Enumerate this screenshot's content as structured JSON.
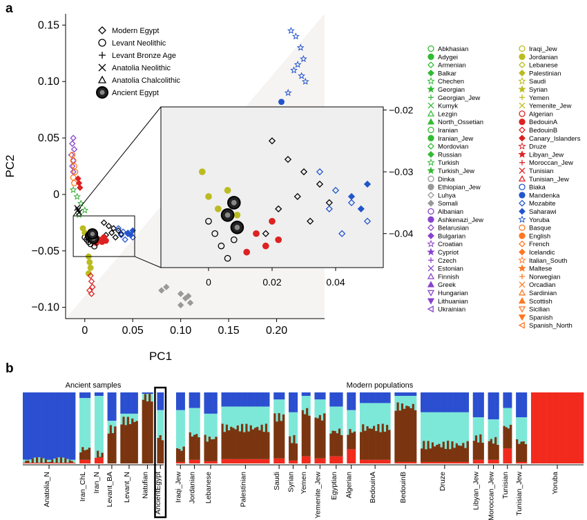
{
  "panel_a_label": "a",
  "panel_b_label": "b",
  "chart_data": [
    {
      "type": "scatter",
      "xlabel": "PC1",
      "ylabel": "PC2",
      "xlim": [
        -0.02,
        0.25
      ],
      "ylim": [
        -0.11,
        0.16
      ],
      "x_ticks": [
        "0",
        "0.05",
        "0.10",
        "0.15",
        "0.20"
      ],
      "x_tick_values": [
        0,
        0.05,
        0.1,
        0.15,
        0.2
      ],
      "y_ticks": [
        "0.15",
        "0.10",
        "0.05",
        "0",
        "−0.05",
        "−0.10"
      ],
      "y_tick_values": [
        0.15,
        0.1,
        0.05,
        0,
        -0.05,
        -0.1
      ],
      "ancient_legend": [
        {
          "label": "Modern Egypt",
          "marker": "diamond"
        },
        {
          "label": "Levant Neolithic",
          "marker": "circle"
        },
        {
          "label": "Levant Bronze Age",
          "marker": "plus"
        },
        {
          "label": "Anatolia Neolithic",
          "marker": "cross"
        },
        {
          "label": "Anatolia Chalcolithic",
          "marker": "triangle"
        },
        {
          "label": "Ancient Egypt",
          "marker": "bigdot"
        }
      ],
      "inset": {
        "xlim": [
          -0.015,
          0.055
        ],
        "ylim": [
          -0.0455,
          -0.0195
        ],
        "x_ticks": [
          "0",
          "0.02",
          "0.04"
        ],
        "x_tick_values": [
          0,
          0.02,
          0.04
        ],
        "y_ticks": [
          "−0.02",
          "−0.03",
          "−0.04"
        ],
        "y_tick_values": [
          -0.02,
          -0.03,
          -0.04
        ]
      },
      "clusters": [
        {
          "color": "#2255cc",
          "marker": "star",
          "x": [
            0.215,
            0.22,
            0.225,
            0.228,
            0.222,
            0.218,
            0.226,
            0.23,
            0.212
          ],
          "y": [
            0.145,
            0.14,
            0.13,
            0.12,
            0.115,
            0.11,
            0.105,
            0.1,
            0.09
          ]
        },
        {
          "color": "#2255cc",
          "marker": "dot",
          "x": [
            0.2,
            0.205,
            0.198
          ],
          "y": [
            0.075,
            0.082,
            0.07
          ]
        },
        {
          "color": "#000000",
          "marker": "diamond",
          "x": [
            0.02,
            0.025,
            0.03,
            0.035,
            0.028,
            0.022,
            0.032,
            0.038,
            0.018
          ],
          "y": [
            -0.025,
            -0.028,
            -0.03,
            -0.032,
            -0.034,
            -0.036,
            -0.038,
            -0.035,
            -0.04
          ]
        },
        {
          "color": "#2255cc",
          "marker": "diamond",
          "x": [
            0.035,
            0.04,
            0.045,
            0.05,
            0.042,
            0.038
          ],
          "y": [
            -0.03,
            -0.033,
            -0.035,
            -0.038,
            -0.04,
            -0.036
          ]
        },
        {
          "color": "#2255cc",
          "marker": "fdiamond",
          "x": [
            0.045,
            0.05,
            0.048
          ],
          "y": [
            -0.034,
            -0.032,
            -0.036
          ]
        },
        {
          "color": "#dd2222",
          "marker": "dot",
          "x": [
            0.015,
            0.018,
            0.02,
            0.022,
            0.012
          ],
          "y": [
            -0.04,
            -0.042,
            -0.038,
            -0.041,
            -0.043
          ]
        },
        {
          "color": "#000000",
          "marker": "circle",
          "x": [
            0.0,
            0.002,
            0.004,
            0.006,
            0.008,
            0.01
          ],
          "y": [
            -0.038,
            -0.04,
            -0.042,
            -0.044,
            -0.041,
            -0.046
          ]
        },
        {
          "color": "#bbbb22",
          "marker": "dot",
          "x": [
            -0.002,
            0.0,
            0.003,
            0.006,
            0.009
          ],
          "y": [
            -0.03,
            -0.034,
            -0.036,
            -0.033,
            -0.037
          ]
        },
        {
          "color": "#8844cc",
          "marker": "diamond",
          "x": [
            -0.012,
            -0.013,
            -0.011,
            -0.014,
            -0.012,
            -0.013,
            -0.012
          ],
          "y": [
            0.05,
            0.045,
            0.04,
            0.035,
            0.03,
            0.025,
            0.02
          ]
        },
        {
          "color": "#ff7722",
          "marker": "circle",
          "x": [
            -0.013,
            -0.012,
            -0.011,
            -0.01,
            -0.012,
            -0.011
          ],
          "y": [
            0.035,
            0.03,
            0.025,
            0.02,
            0.015,
            0.01
          ]
        },
        {
          "color": "#dd2222",
          "marker": "fdiamond",
          "x": [
            -0.007,
            -0.006,
            -0.005
          ],
          "y": [
            0.014,
            0.01,
            0.006
          ]
        },
        {
          "color": "#33aa33",
          "marker": "star",
          "x": [
            -0.012,
            -0.008,
            -0.004,
            0.0,
            -0.006
          ],
          "y": [
            0.004,
            -0.002,
            -0.008,
            -0.014,
            -0.018
          ]
        },
        {
          "color": "#000000",
          "marker": "cross",
          "x": [
            -0.008,
            -0.007,
            -0.006
          ],
          "y": [
            -0.012,
            -0.014,
            -0.016
          ]
        },
        {
          "color": "#bbbb22",
          "marker": "dot",
          "x": [
            0.004,
            0.005,
            0.006,
            0.004
          ],
          "y": [
            -0.055,
            -0.06,
            -0.065,
            -0.07
          ]
        },
        {
          "color": "#dd2222",
          "marker": "diamond",
          "x": [
            0.006,
            0.007,
            0.008,
            0.005,
            0.007
          ],
          "y": [
            -0.072,
            -0.077,
            -0.082,
            -0.085,
            -0.088
          ]
        },
        {
          "color": "#999999",
          "marker": "fdiamond",
          "x": [
            0.08,
            0.085,
            0.1,
            0.105,
            0.11,
            0.1,
            0.108
          ],
          "y": [
            -0.085,
            -0.082,
            -0.088,
            -0.092,
            -0.096,
            -0.098,
            -0.09
          ]
        }
      ],
      "ancient_egypt": {
        "x": [
          0.006,
          0.009,
          0.008
        ],
        "y": [
          -0.037,
          -0.039,
          -0.035
        ]
      }
    },
    {
      "type": "stacked_bar",
      "ancient_group_title": "Ancient samples",
      "modern_group_title": "Modern populations",
      "components": [
        {
          "color": "#2b4fd0"
        },
        {
          "color": "#7de8d8"
        },
        {
          "color": "#7a3510"
        },
        {
          "color": "#f22a1e"
        }
      ],
      "groups": [
        {
          "label": "Anatolia_N",
          "n": 24,
          "blue": 0.95,
          "cyan": 0.02,
          "brown": 0.02,
          "red": 0.01
        },
        {
          "label": "Iran_ChL",
          "n": 5,
          "blue": 0.08,
          "cyan": 0.72,
          "brown": 0.15,
          "red": 0.05
        },
        {
          "label": "Iran_N",
          "n": 4,
          "blue": 0.05,
          "cyan": 0.82,
          "brown": 0.05,
          "red": 0.08
        },
        {
          "label": "Levant_BA",
          "n": 4,
          "blue": 0.4,
          "cyan": 0.12,
          "brown": 0.48,
          "red": 0.0
        },
        {
          "label": "Levant_N",
          "n": 8,
          "blue": 0.3,
          "cyan": 0.1,
          "brown": 0.6,
          "red": 0.0
        },
        {
          "label": "Natufian",
          "n": 5,
          "blue": 0.02,
          "cyan": 0.05,
          "brown": 0.93,
          "red": 0.0
        },
        {
          "label": "AncientEgypt",
          "n": 3,
          "blue": 0.25,
          "cyan": 0.38,
          "brown": 0.37,
          "red": 0.0
        },
        {
          "label": "Iraqi_Jew",
          "n": 4,
          "blue": 0.25,
          "cyan": 0.55,
          "brown": 0.18,
          "red": 0.02
        },
        {
          "label": "Jordanian",
          "n": 5,
          "blue": 0.22,
          "cyan": 0.38,
          "brown": 0.35,
          "red": 0.05
        },
        {
          "label": "Lebanese",
          "n": 6,
          "blue": 0.3,
          "cyan": 0.35,
          "brown": 0.32,
          "red": 0.03
        },
        {
          "label": "Palestinian",
          "n": 22,
          "blue": 0.2,
          "cyan": 0.3,
          "brown": 0.44,
          "red": 0.06
        },
        {
          "label": "Saudi",
          "n": 5,
          "blue": 0.1,
          "cyan": 0.25,
          "brown": 0.58,
          "red": 0.07
        },
        {
          "label": "Syrian",
          "n": 4,
          "blue": 0.28,
          "cyan": 0.38,
          "brown": 0.3,
          "red": 0.04
        },
        {
          "label": "Yemen",
          "n": 4,
          "blue": 0.05,
          "cyan": 0.22,
          "brown": 0.63,
          "red": 0.1
        },
        {
          "label": "Yemenite_Jew",
          "n": 5,
          "blue": 0.1,
          "cyan": 0.25,
          "brown": 0.58,
          "red": 0.07
        },
        {
          "label": "Egyptian",
          "n": 6,
          "blue": 0.2,
          "cyan": 0.35,
          "brown": 0.35,
          "red": 0.1
        },
        {
          "label": "Algerian",
          "n": 4,
          "blue": 0.25,
          "cyan": 0.3,
          "brown": 0.25,
          "red": 0.2
        },
        {
          "label": "BedouinA",
          "n": 14,
          "blue": 0.15,
          "cyan": 0.35,
          "brown": 0.45,
          "red": 0.05
        },
        {
          "label": "BedouinB",
          "n": 10,
          "blue": 0.05,
          "cyan": 0.15,
          "brown": 0.78,
          "red": 0.02
        },
        {
          "label": "Druze",
          "n": 22,
          "blue": 0.28,
          "cyan": 0.46,
          "brown": 0.24,
          "red": 0.02
        },
        {
          "label": "Libyan_Jew",
          "n": 5,
          "blue": 0.35,
          "cyan": 0.3,
          "brown": 0.3,
          "red": 0.05
        },
        {
          "label": "Moroccan_Jew",
          "n": 5,
          "blue": 0.38,
          "cyan": 0.3,
          "brown": 0.27,
          "red": 0.05
        },
        {
          "label": "Tunisian",
          "n": 4,
          "blue": 0.22,
          "cyan": 0.27,
          "brown": 0.3,
          "red": 0.21
        },
        {
          "label": "Tunisian_Jew",
          "n": 5,
          "blue": 0.35,
          "cyan": 0.35,
          "brown": 0.28,
          "red": 0.02
        },
        {
          "label": "Yoruba",
          "n": 24,
          "blue": 0.0,
          "cyan": 0.0,
          "brown": 0.0,
          "red": 1.0
        }
      ]
    }
  ],
  "population_legend": [
    {
      "label": "Abkhasian",
      "color": "#33bb33",
      "shape": "circle"
    },
    {
      "label": "Adygei",
      "color": "#33bb33",
      "shape": "dot"
    },
    {
      "label": "Armenian",
      "color": "#33bb33",
      "shape": "diamond"
    },
    {
      "label": "Balkar",
      "color": "#33bb33",
      "shape": "fdiamond"
    },
    {
      "label": "Chechen",
      "color": "#33bb33",
      "shape": "star"
    },
    {
      "label": "Georgian",
      "color": "#33bb33",
      "shape": "fstar"
    },
    {
      "label": "Georgian_Jew",
      "color": "#33bb33",
      "shape": "plus"
    },
    {
      "label": "Kumyk",
      "color": "#33bb33",
      "shape": "cross"
    },
    {
      "label": "Lezgin",
      "color": "#33bb33",
      "shape": "triangle"
    },
    {
      "label": "North_Ossetian",
      "color": "#33bb33",
      "shape": "ftriangle"
    },
    {
      "label": "Iranian",
      "color": "#33bb33",
      "shape": "circle"
    },
    {
      "label": "Iranian_Jew",
      "color": "#33bb33",
      "shape": "dot"
    },
    {
      "label": "Mordovian",
      "color": "#33bb33",
      "shape": "diamond"
    },
    {
      "label": "Russian",
      "color": "#33bb33",
      "shape": "fdiamond"
    },
    {
      "label": "Turkish",
      "color": "#33bb33",
      "shape": "star"
    },
    {
      "label": "Turkish_Jew",
      "color": "#33bb33",
      "shape": "fstar"
    },
    {
      "label": "Dinka",
      "color": "#999999",
      "shape": "circle"
    },
    {
      "label": "Ethiopian_Jew",
      "color": "#999999",
      "shape": "dot"
    },
    {
      "label": "Luhya",
      "color": "#999999",
      "shape": "diamond"
    },
    {
      "label": "Somali",
      "color": "#999999",
      "shape": "fdiamond"
    },
    {
      "label": "Albanian",
      "color": "#8844cc",
      "shape": "circle"
    },
    {
      "label": "Ashkenazi_Jew",
      "color": "#8844cc",
      "shape": "dot"
    },
    {
      "label": "Belarusian",
      "color": "#8844cc",
      "shape": "diamond"
    },
    {
      "label": "Bulgarian",
      "color": "#8844cc",
      "shape": "fdiamond"
    },
    {
      "label": "Croatian",
      "color": "#8844cc",
      "shape": "star"
    },
    {
      "label": "Cypriot",
      "color": "#8844cc",
      "shape": "fstar"
    },
    {
      "label": "Czech",
      "color": "#8844cc",
      "shape": "plus"
    },
    {
      "label": "Estonian",
      "color": "#8844cc",
      "shape": "cross"
    },
    {
      "label": "Finnish",
      "color": "#8844cc",
      "shape": "triangle"
    },
    {
      "label": "Greek",
      "color": "#8844cc",
      "shape": "ftriangle"
    },
    {
      "label": "Hungarian",
      "color": "#8844cc",
      "shape": "dtriangle"
    },
    {
      "label": "Lithuanian",
      "color": "#8844cc",
      "shape": "fdtriangle"
    },
    {
      "label": "Ukrainian",
      "color": "#8844cc",
      "shape": "ltriangle"
    },
    {
      "label": "Iraqi_Jew",
      "color": "#bbbb22",
      "shape": "circle"
    },
    {
      "label": "Jordanian",
      "color": "#bbbb22",
      "shape": "dot"
    },
    {
      "label": "Lebanese",
      "color": "#bbbb22",
      "shape": "diamond"
    },
    {
      "label": "Palestinian",
      "color": "#bbbb22",
      "shape": "fdiamond"
    },
    {
      "label": "Saudi",
      "color": "#bbbb22",
      "shape": "star"
    },
    {
      "label": "Syrian",
      "color": "#bbbb22",
      "shape": "fstar"
    },
    {
      "label": "Yemen",
      "color": "#bbbb22",
      "shape": "plus"
    },
    {
      "label": "Yemenite_Jew",
      "color": "#bbbb22",
      "shape": "cross"
    },
    {
      "label": "Algerian",
      "color": "#dd2222",
      "shape": "circle"
    },
    {
      "label": "BedouinA",
      "color": "#dd2222",
      "shape": "dot"
    },
    {
      "label": "BedouinB",
      "color": "#dd2222",
      "shape": "diamond"
    },
    {
      "label": "Canary_Islanders",
      "color": "#dd2222",
      "shape": "fdiamond"
    },
    {
      "label": "Druze",
      "color": "#dd2222",
      "shape": "star"
    },
    {
      "label": "Libyan_Jew",
      "color": "#dd2222",
      "shape": "fstar"
    },
    {
      "label": "Moroccan_Jew",
      "color": "#dd2222",
      "shape": "plus"
    },
    {
      "label": "Tunisian",
      "color": "#dd2222",
      "shape": "cross"
    },
    {
      "label": "Tunisian_Jew",
      "color": "#dd2222",
      "shape": "triangle"
    },
    {
      "label": "Biaka",
      "color": "#2255cc",
      "shape": "circle"
    },
    {
      "label": "Mandenka",
      "color": "#2255cc",
      "shape": "dot"
    },
    {
      "label": "Mozabite",
      "color": "#2255cc",
      "shape": "diamond"
    },
    {
      "label": "Saharawi",
      "color": "#2255cc",
      "shape": "fdiamond"
    },
    {
      "label": "Yoruba",
      "color": "#2255cc",
      "shape": "star"
    },
    {
      "label": "Basque",
      "color": "#ff7722",
      "shape": "circle"
    },
    {
      "label": "English",
      "color": "#ff7722",
      "shape": "dot"
    },
    {
      "label": "French",
      "color": "#ff7722",
      "shape": "diamond"
    },
    {
      "label": "Icelandic",
      "color": "#ff7722",
      "shape": "fdiamond"
    },
    {
      "label": "Italian_South",
      "color": "#ff7722",
      "shape": "star"
    },
    {
      "label": "Maltese",
      "color": "#ff7722",
      "shape": "fstar"
    },
    {
      "label": "Norwegian",
      "color": "#ff7722",
      "shape": "plus"
    },
    {
      "label": "Orcadian",
      "color": "#ff7722",
      "shape": "cross"
    },
    {
      "label": "Sardinian",
      "color": "#ff7722",
      "shape": "triangle"
    },
    {
      "label": "Scottish",
      "color": "#ff7722",
      "shape": "ftriangle"
    },
    {
      "label": "Sicilian",
      "color": "#ff7722",
      "shape": "dtriangle"
    },
    {
      "label": "Spanish",
      "color": "#ff7722",
      "shape": "fdtriangle"
    },
    {
      "label": "Spanish_North",
      "color": "#ff7722",
      "shape": "ltriangle"
    }
  ]
}
